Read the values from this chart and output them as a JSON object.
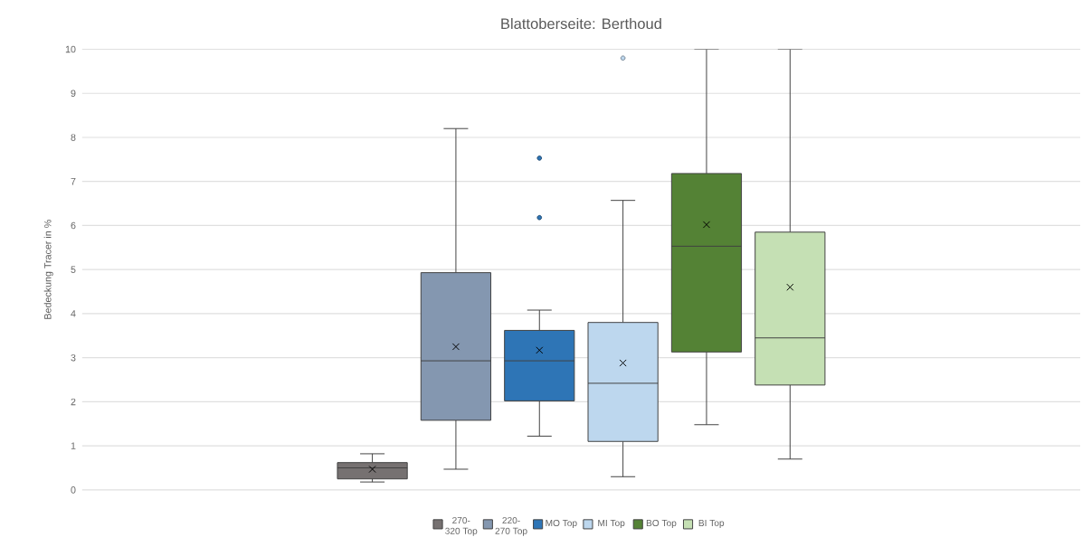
{
  "chart_data": {
    "type": "box",
    "title": "Blattoberseite: Berthoud",
    "ylabel": "Bedeckung Tracer in %",
    "categories": [
      null
    ],
    "ylim": [
      0,
      10
    ],
    "yticks": [
      0,
      1,
      2,
      3,
      4,
      5,
      6,
      7,
      8,
      9,
      10
    ],
    "grid": "y",
    "legend": "bottom",
    "series": [
      {
        "name": "270-320 Top",
        "color": "#767171",
        "boxes": [
          {
            "low": 0.18,
            "q1": 0.25,
            "median": 0.5,
            "q3": 0.62,
            "high": 0.82,
            "mean": 0.47
          }
        ]
      },
      {
        "name": "220-270 Top",
        "color": "#8497b0",
        "boxes": [
          {
            "low": 0.47,
            "q1": 1.58,
            "median": 2.93,
            "q3": 4.93,
            "high": 8.2,
            "mean": 3.25
          }
        ]
      },
      {
        "name": "MO Top",
        "color": "#2e75b6",
        "boxes": [
          {
            "low": 1.22,
            "q1": 2.02,
            "median": 2.93,
            "q3": 3.62,
            "high": 4.08,
            "mean": 3.17,
            "outliers": [
              6.18,
              7.53
            ]
          }
        ]
      },
      {
        "name": "MI Top",
        "color": "#bdd7ee",
        "boxes": [
          {
            "low": 0.3,
            "q1": 1.1,
            "median": 2.42,
            "q3": 3.8,
            "high": 6.57,
            "mean": 2.88,
            "outliers": [
              9.8
            ]
          }
        ]
      },
      {
        "name": "BO Top",
        "color": "#548235",
        "boxes": [
          {
            "low": 1.48,
            "q1": 3.13,
            "median": 5.53,
            "q3": 7.18,
            "high": 10,
            "mean": 6.02
          }
        ]
      },
      {
        "name": "BI Top",
        "color": "#c5e0b4",
        "boxes": [
          {
            "low": 0.7,
            "q1": 2.38,
            "median": 3.45,
            "q3": 5.85,
            "high": 10,
            "mean": 4.6
          }
        ]
      }
    ]
  }
}
